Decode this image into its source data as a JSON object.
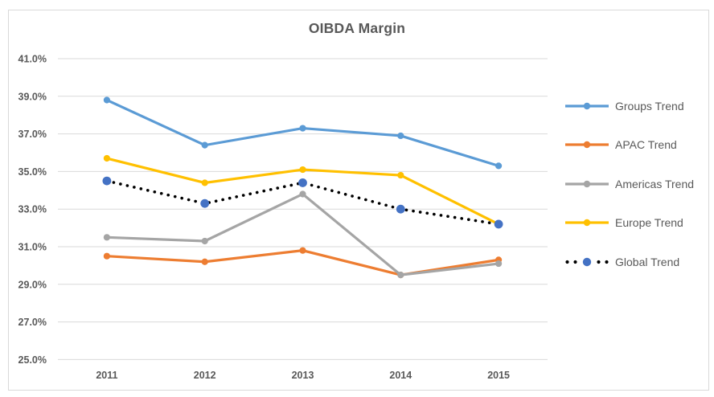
{
  "chart_data": {
    "type": "line",
    "title": "OIBDA Margin",
    "categories": [
      "2011",
      "2012",
      "2013",
      "2014",
      "2015"
    ],
    "series": [
      {
        "name": "Groups Trend",
        "values": [
          38.8,
          36.4,
          37.3,
          36.9,
          35.3
        ],
        "color": "#5B9BD5",
        "line_style": "solid",
        "marker": "circle"
      },
      {
        "name": "APAC Trend",
        "values": [
          30.5,
          30.2,
          30.8,
          29.5,
          30.3
        ],
        "color": "#ED7D31",
        "line_style": "solid",
        "marker": "circle"
      },
      {
        "name": "Americas Trend",
        "values": [
          31.5,
          31.3,
          33.8,
          29.5,
          30.1
        ],
        "color": "#A5A5A5",
        "line_style": "solid",
        "marker": "circle"
      },
      {
        "name": "Europe Trend",
        "values": [
          35.7,
          34.4,
          35.1,
          34.8,
          32.2
        ],
        "color": "#FFC000",
        "line_style": "solid",
        "marker": "circle"
      },
      {
        "name": "Global Trend",
        "values": [
          34.5,
          33.3,
          34.4,
          33.0,
          32.2
        ],
        "color": "#000000",
        "marker_color": "#4472C4",
        "line_style": "dotted",
        "marker": "circle"
      }
    ],
    "xlabel": "",
    "ylabel": "",
    "ylim": [
      25,
      41
    ],
    "y_ticks": [
      {
        "value": 25,
        "label": "25.0%"
      },
      {
        "value": 27,
        "label": "27.0%"
      },
      {
        "value": 29,
        "label": "29.0%"
      },
      {
        "value": 31,
        "label": "31.0%"
      },
      {
        "value": 33,
        "label": "33.0%"
      },
      {
        "value": 35,
        "label": "35.0%"
      },
      {
        "value": 37,
        "label": "37.0%"
      },
      {
        "value": 39,
        "label": "39.0%"
      },
      {
        "value": 41,
        "label": "41.0%"
      }
    ],
    "grid": true,
    "legend_position": "right"
  },
  "style": {
    "background": "#FFFFFF",
    "text_color": "#595959",
    "grid_color": "#D9D9D9",
    "border_color": "#D9D9D9"
  }
}
